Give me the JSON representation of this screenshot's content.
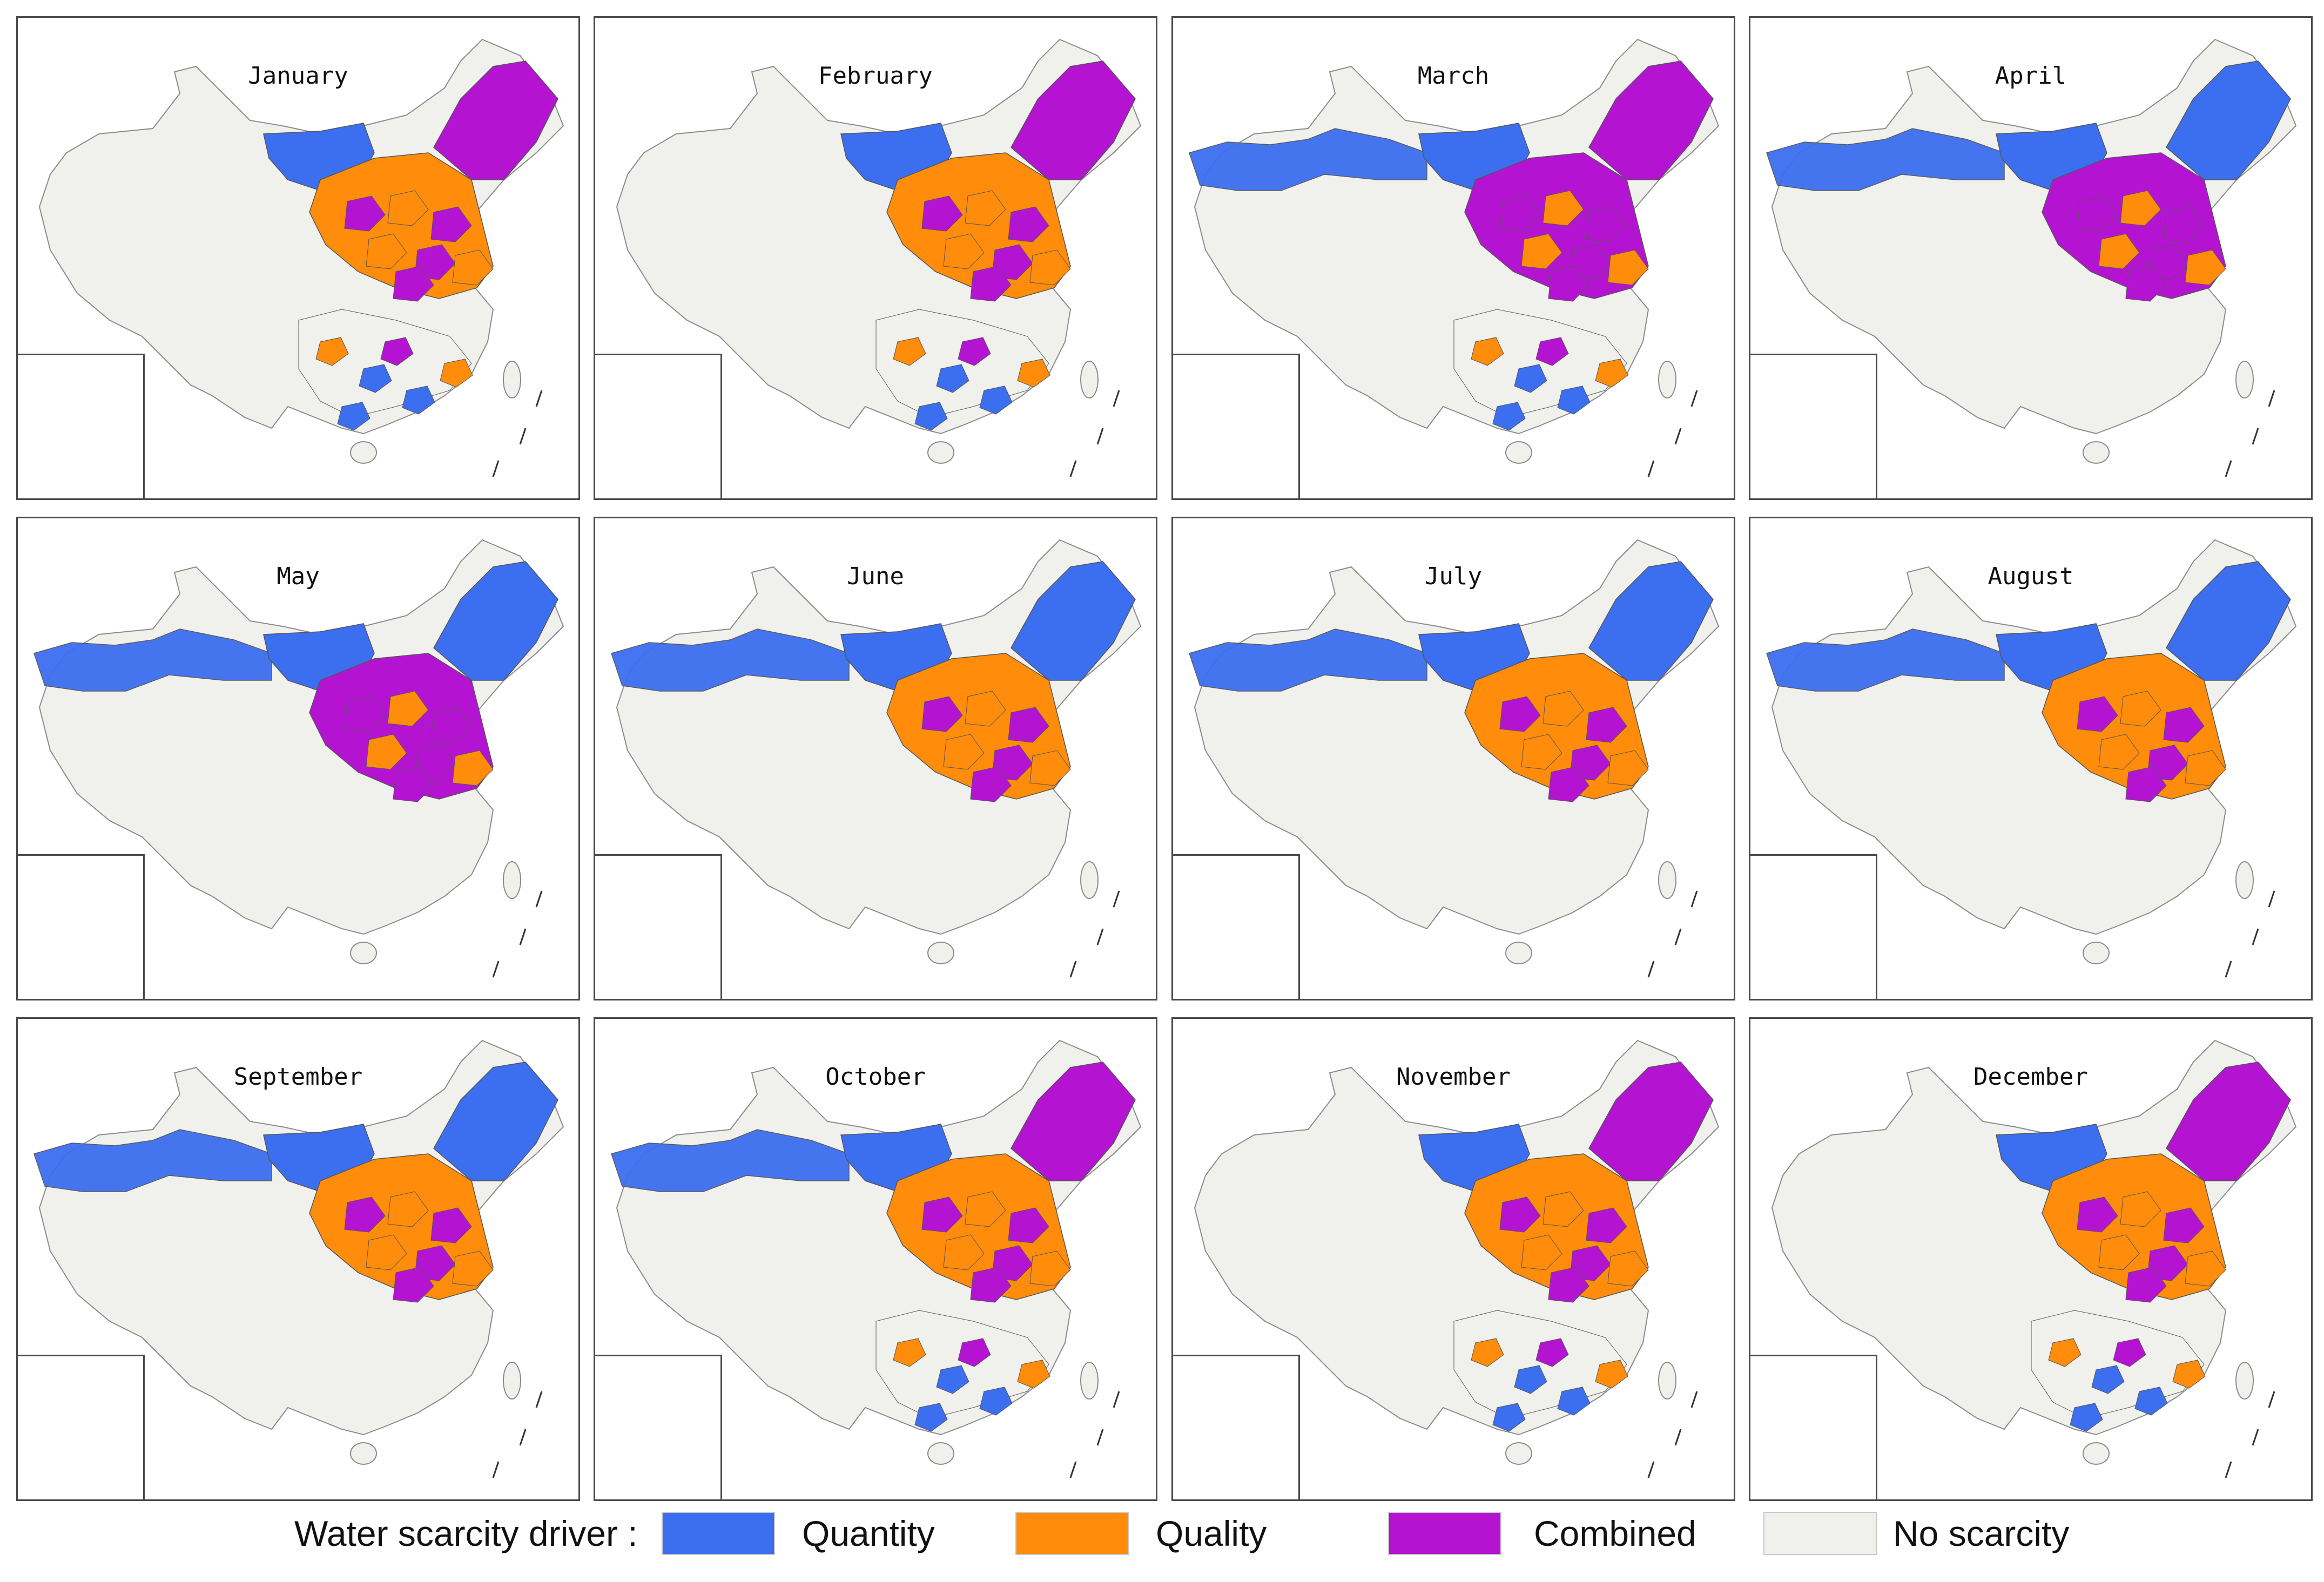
{
  "colors": {
    "quantity": "#3c6ef0",
    "quality": "#ff8c0a",
    "combined": "#b414d2",
    "no_scarcity": "#f0f0ec",
    "border": "#8c8c8c"
  },
  "legend": {
    "title": "Water scarcity driver :",
    "items": [
      {
        "key": "quantity",
        "label": "Quantity",
        "color": "#3c6ef0"
      },
      {
        "key": "quality",
        "label": "Quality",
        "color": "#ff8c0a"
      },
      {
        "key": "combined",
        "label": "Combined",
        "color": "#b414d2"
      },
      {
        "key": "no_scarcity",
        "label": "No scarcity",
        "color": "#f0f0ec"
      }
    ]
  },
  "months": [
    {
      "title": "January",
      "northwest": "none",
      "northcentral": "mixed-quality",
      "northeast": "combined",
      "south": "mixed"
    },
    {
      "title": "February",
      "northwest": "none",
      "northcentral": "mixed-quality",
      "northeast": "combined",
      "south": "mixed"
    },
    {
      "title": "March",
      "northwest": "quantity",
      "northcentral": "mixed-combined",
      "northeast": "combined",
      "south": "mixed"
    },
    {
      "title": "April",
      "northwest": "quantity",
      "northcentral": "mixed-combined",
      "northeast": "quantity",
      "south": "sparse"
    },
    {
      "title": "May",
      "northwest": "quantity",
      "northcentral": "mixed-combined",
      "northeast": "quantity",
      "south": "sparse"
    },
    {
      "title": "June",
      "northwest": "quantity",
      "northcentral": "mixed-quality",
      "northeast": "quantity",
      "south": "sparse"
    },
    {
      "title": "July",
      "northwest": "quantity",
      "northcentral": "mixed-quality",
      "northeast": "quantity",
      "south": "sparse"
    },
    {
      "title": "August",
      "northwest": "quantity",
      "northcentral": "mixed-quality",
      "northeast": "quantity",
      "south": "sparse"
    },
    {
      "title": "September",
      "northwest": "quantity",
      "northcentral": "mixed-quality",
      "northeast": "quantity",
      "south": "sparse"
    },
    {
      "title": "October",
      "northwest": "quantity",
      "northcentral": "mixed-quality",
      "northeast": "combined",
      "south": "mixed"
    },
    {
      "title": "November",
      "northwest": "none",
      "northcentral": "mixed-quality",
      "northeast": "combined",
      "south": "mixed"
    },
    {
      "title": "December",
      "northwest": "none",
      "northcentral": "mixed-quality",
      "northeast": "combined",
      "south": "mixed"
    }
  ]
}
